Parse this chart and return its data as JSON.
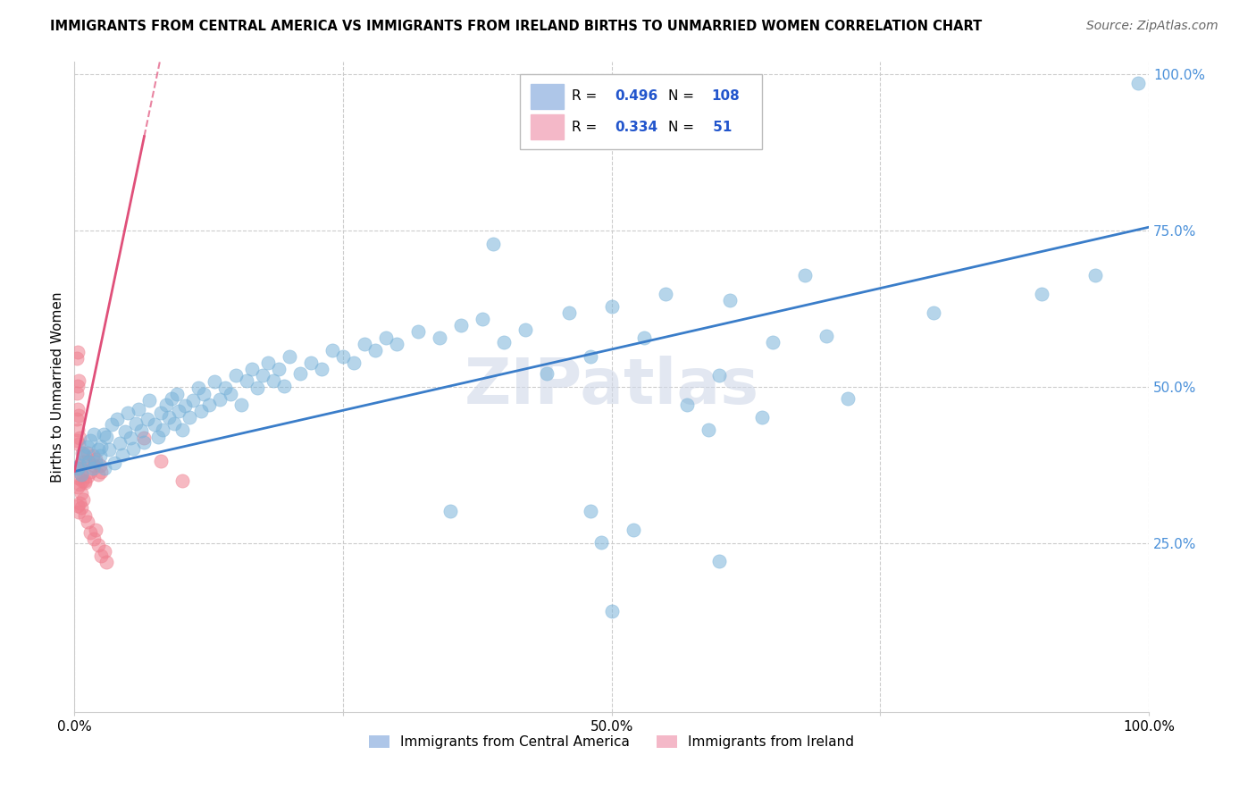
{
  "title": "IMMIGRANTS FROM CENTRAL AMERICA VS IMMIGRANTS FROM IRELAND BIRTHS TO UNMARRIED WOMEN CORRELATION CHART",
  "source": "Source: ZipAtlas.com",
  "ylabel": "Births to Unmarried Women",
  "xlim": [
    0,
    1.0
  ],
  "ylim": [
    -0.02,
    1.02
  ],
  "xticks": [
    0.0,
    0.25,
    0.5,
    0.75,
    1.0
  ],
  "xticklabels": [
    "0.0%",
    "",
    "50.0%",
    "",
    "100.0%"
  ],
  "yticks_right": [
    0.25,
    0.5,
    0.75,
    1.0
  ],
  "yticklabels_right": [
    "25.0%",
    "50.0%",
    "75.0%",
    "100.0%"
  ],
  "legend_entries": [
    {
      "label": "Immigrants from Central America",
      "color": "#aec6e8"
    },
    {
      "label": "Immigrants from Ireland",
      "color": "#f4b8c8"
    }
  ],
  "R_blue": "0.496",
  "N_blue": "108",
  "R_pink": "0.334",
  "N_pink": " 51",
  "watermark": "ZIPatlas",
  "blue_dot_color": "#7ab3d9",
  "pink_dot_color": "#f08090",
  "line_blue_color": "#3a7dc9",
  "line_pink_color": "#e0507a",
  "blue_line_x0": 0.0,
  "blue_line_y0": 0.365,
  "blue_line_x1": 1.0,
  "blue_line_y1": 0.755,
  "pink_line_x0": 0.0,
  "pink_line_y0": 0.365,
  "pink_line_x1": 0.065,
  "pink_line_y1": 0.9,
  "blue_scatter": [
    [
      0.003,
      0.37
    ],
    [
      0.005,
      0.375
    ],
    [
      0.006,
      0.36
    ],
    [
      0.008,
      0.395
    ],
    [
      0.01,
      0.39
    ],
    [
      0.012,
      0.405
    ],
    [
      0.013,
      0.38
    ],
    [
      0.015,
      0.415
    ],
    [
      0.017,
      0.37
    ],
    [
      0.018,
      0.425
    ],
    [
      0.02,
      0.38
    ],
    [
      0.022,
      0.4
    ],
    [
      0.024,
      0.39
    ],
    [
      0.025,
      0.405
    ],
    [
      0.027,
      0.425
    ],
    [
      0.028,
      0.37
    ],
    [
      0.03,
      0.42
    ],
    [
      0.032,
      0.4
    ],
    [
      0.035,
      0.44
    ],
    [
      0.037,
      0.378
    ],
    [
      0.04,
      0.448
    ],
    [
      0.042,
      0.41
    ],
    [
      0.045,
      0.392
    ],
    [
      0.047,
      0.428
    ],
    [
      0.05,
      0.458
    ],
    [
      0.052,
      0.418
    ],
    [
      0.055,
      0.402
    ],
    [
      0.057,
      0.442
    ],
    [
      0.06,
      0.465
    ],
    [
      0.062,
      0.43
    ],
    [
      0.065,
      0.412
    ],
    [
      0.068,
      0.448
    ],
    [
      0.07,
      0.478
    ],
    [
      0.075,
      0.44
    ],
    [
      0.078,
      0.42
    ],
    [
      0.08,
      0.458
    ],
    [
      0.082,
      0.432
    ],
    [
      0.085,
      0.472
    ],
    [
      0.088,
      0.452
    ],
    [
      0.09,
      0.482
    ],
    [
      0.093,
      0.442
    ],
    [
      0.095,
      0.488
    ],
    [
      0.097,
      0.462
    ],
    [
      0.1,
      0.432
    ],
    [
      0.103,
      0.47
    ],
    [
      0.107,
      0.452
    ],
    [
      0.11,
      0.478
    ],
    [
      0.115,
      0.498
    ],
    [
      0.118,
      0.462
    ],
    [
      0.12,
      0.488
    ],
    [
      0.125,
      0.472
    ],
    [
      0.13,
      0.508
    ],
    [
      0.135,
      0.48
    ],
    [
      0.14,
      0.498
    ],
    [
      0.145,
      0.488
    ],
    [
      0.15,
      0.518
    ],
    [
      0.155,
      0.472
    ],
    [
      0.16,
      0.51
    ],
    [
      0.165,
      0.528
    ],
    [
      0.17,
      0.498
    ],
    [
      0.175,
      0.518
    ],
    [
      0.18,
      0.538
    ],
    [
      0.185,
      0.51
    ],
    [
      0.19,
      0.528
    ],
    [
      0.195,
      0.502
    ],
    [
      0.2,
      0.548
    ],
    [
      0.21,
      0.522
    ],
    [
      0.22,
      0.538
    ],
    [
      0.23,
      0.528
    ],
    [
      0.24,
      0.558
    ],
    [
      0.25,
      0.548
    ],
    [
      0.26,
      0.538
    ],
    [
      0.27,
      0.568
    ],
    [
      0.28,
      0.558
    ],
    [
      0.29,
      0.578
    ],
    [
      0.3,
      0.568
    ],
    [
      0.32,
      0.588
    ],
    [
      0.34,
      0.578
    ],
    [
      0.36,
      0.598
    ],
    [
      0.38,
      0.608
    ],
    [
      0.4,
      0.572
    ],
    [
      0.42,
      0.592
    ],
    [
      0.44,
      0.522
    ],
    [
      0.46,
      0.618
    ],
    [
      0.48,
      0.548
    ],
    [
      0.5,
      0.628
    ],
    [
      0.39,
      0.728
    ],
    [
      0.53,
      0.578
    ],
    [
      0.55,
      0.648
    ],
    [
      0.57,
      0.472
    ],
    [
      0.59,
      0.432
    ],
    [
      0.61,
      0.638
    ],
    [
      0.35,
      0.302
    ],
    [
      0.48,
      0.302
    ],
    [
      0.5,
      0.142
    ],
    [
      0.6,
      0.222
    ],
    [
      0.64,
      0.452
    ],
    [
      0.49,
      0.252
    ],
    [
      0.52,
      0.272
    ],
    [
      0.6,
      0.518
    ],
    [
      0.65,
      0.572
    ],
    [
      0.68,
      0.678
    ],
    [
      0.7,
      0.582
    ],
    [
      0.72,
      0.482
    ],
    [
      0.8,
      0.618
    ],
    [
      0.9,
      0.648
    ],
    [
      0.95,
      0.678
    ],
    [
      0.99,
      0.985
    ]
  ],
  "pink_scatter": [
    [
      0.003,
      0.37
    ],
    [
      0.005,
      0.375
    ],
    [
      0.006,
      0.36
    ],
    [
      0.007,
      0.395
    ],
    [
      0.008,
      0.38
    ],
    [
      0.01,
      0.35
    ],
    [
      0.012,
      0.395
    ],
    [
      0.013,
      0.38
    ],
    [
      0.015,
      0.365
    ],
    [
      0.017,
      0.39
    ],
    [
      0.018,
      0.375
    ],
    [
      0.02,
      0.385
    ],
    [
      0.022,
      0.36
    ],
    [
      0.024,
      0.375
    ],
    [
      0.025,
      0.365
    ],
    [
      0.003,
      0.34
    ],
    [
      0.004,
      0.355
    ],
    [
      0.005,
      0.345
    ],
    [
      0.006,
      0.33
    ],
    [
      0.007,
      0.35
    ],
    [
      0.008,
      0.32
    ],
    [
      0.01,
      0.348
    ],
    [
      0.012,
      0.358
    ],
    [
      0.003,
      0.31
    ],
    [
      0.004,
      0.3
    ],
    [
      0.005,
      0.315
    ],
    [
      0.006,
      0.308
    ],
    [
      0.01,
      0.295
    ],
    [
      0.012,
      0.285
    ],
    [
      0.015,
      0.268
    ],
    [
      0.018,
      0.258
    ],
    [
      0.02,
      0.272
    ],
    [
      0.022,
      0.248
    ],
    [
      0.025,
      0.23
    ],
    [
      0.028,
      0.238
    ],
    [
      0.03,
      0.22
    ],
    [
      0.002,
      0.415
    ],
    [
      0.003,
      0.432
    ],
    [
      0.004,
      0.408
    ],
    [
      0.005,
      0.418
    ],
    [
      0.002,
      0.448
    ],
    [
      0.003,
      0.465
    ],
    [
      0.004,
      0.455
    ],
    [
      0.002,
      0.49
    ],
    [
      0.003,
      0.502
    ],
    [
      0.004,
      0.51
    ],
    [
      0.002,
      0.545
    ],
    [
      0.003,
      0.555
    ],
    [
      0.065,
      0.418
    ],
    [
      0.08,
      0.382
    ],
    [
      0.1,
      0.35
    ]
  ]
}
